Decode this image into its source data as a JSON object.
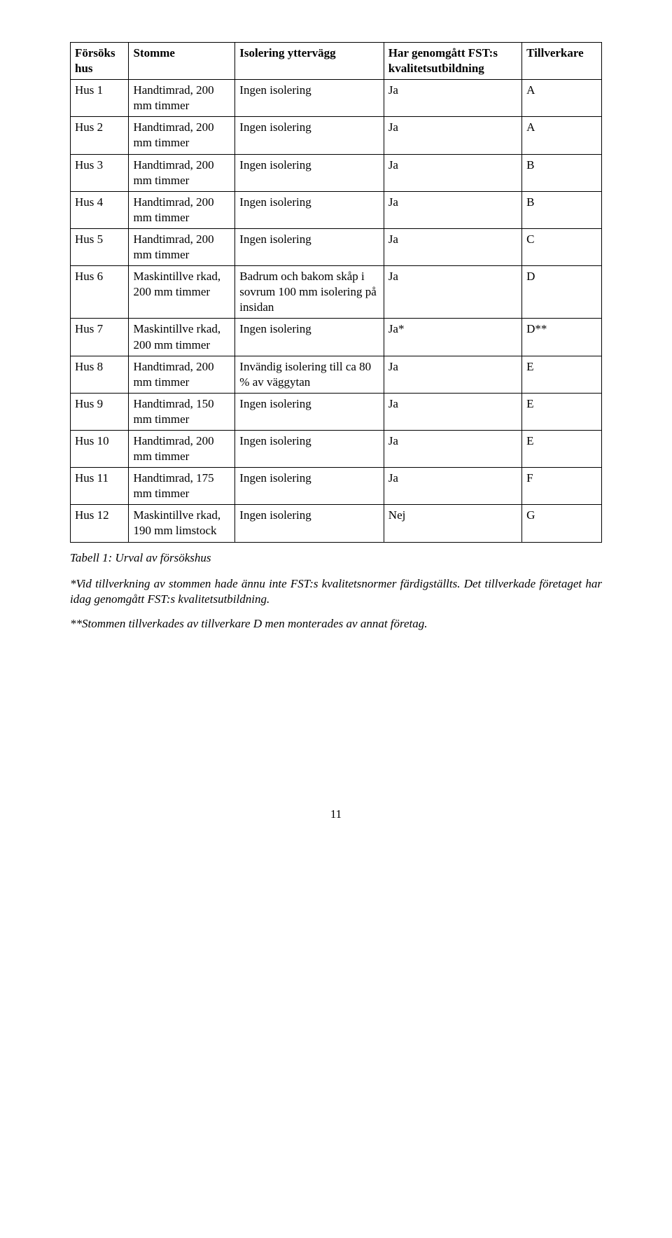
{
  "table": {
    "headers": [
      "Försöks hus",
      "Stomme",
      "Isolering yttervägg",
      "Har genomgått FST:s kvalitetsutbildning",
      "Tillverkare"
    ],
    "rows": [
      [
        "Hus 1",
        "Handtimrad, 200 mm timmer",
        "Ingen isolering",
        "Ja",
        "A"
      ],
      [
        "Hus 2",
        "Handtimrad, 200 mm timmer",
        "Ingen isolering",
        "Ja",
        "A"
      ],
      [
        "Hus 3",
        "Handtimrad, 200 mm timmer",
        "Ingen isolering",
        "Ja",
        "B"
      ],
      [
        "Hus 4",
        "Handtimrad, 200 mm timmer",
        "Ingen isolering",
        "Ja",
        "B"
      ],
      [
        "Hus 5",
        "Handtimrad, 200 mm timmer",
        "Ingen isolering",
        "Ja",
        "C"
      ],
      [
        "Hus 6",
        "Maskintillve rkad, 200 mm timmer",
        "Badrum och bakom skåp i sovrum 100 mm isolering på insidan",
        "Ja",
        "D"
      ],
      [
        "Hus 7",
        "Maskintillve rkad, 200 mm timmer",
        "Ingen isolering",
        "Ja*",
        "D**"
      ],
      [
        "Hus 8",
        "Handtimrad, 200 mm timmer",
        "Invändig isolering till ca 80 % av väggytan",
        "Ja",
        "E"
      ],
      [
        "Hus 9",
        "Handtimrad, 150 mm timmer",
        "Ingen isolering",
        "Ja",
        "E"
      ],
      [
        "Hus 10",
        "Handtimrad, 200 mm timmer",
        "Ingen isolering",
        "Ja",
        "E"
      ],
      [
        "Hus 11",
        "Handtimrad, 175 mm timmer",
        "Ingen isolering",
        "Ja",
        "F"
      ],
      [
        "Hus 12",
        "Maskintillve rkad, 190 mm limstock",
        "Ingen isolering",
        "Nej",
        "G"
      ]
    ]
  },
  "caption": "Tabell 1: Urval av försökshus",
  "footnote1": "*Vid tillverkning av stommen hade ännu inte FST:s kvalitetsnormer färdigställts. Det tillverkade företaget har idag genomgått FST:s kvalitetsutbildning.",
  "footnote2": "**Stommen tillverkades av tillverkare D men monterades av annat företag.",
  "page_number": "11"
}
